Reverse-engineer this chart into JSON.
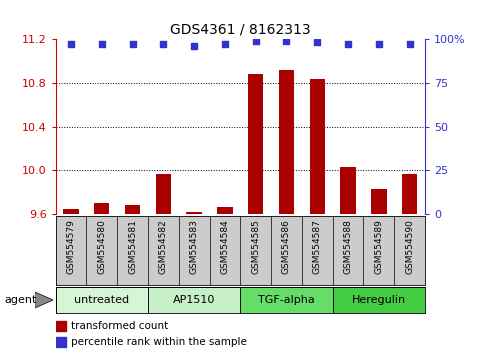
{
  "title": "GDS4361 / 8162313",
  "samples": [
    "GSM554579",
    "GSM554580",
    "GSM554581",
    "GSM554582",
    "GSM554583",
    "GSM554584",
    "GSM554585",
    "GSM554586",
    "GSM554587",
    "GSM554588",
    "GSM554589",
    "GSM554590"
  ],
  "bar_values": [
    9.65,
    9.7,
    9.68,
    9.97,
    9.62,
    9.67,
    10.88,
    10.92,
    10.83,
    10.03,
    9.83,
    9.97
  ],
  "percentile_values": [
    97,
    97,
    97,
    97,
    96,
    97,
    99,
    99,
    98,
    97,
    97,
    97
  ],
  "ymin": 9.6,
  "ymax": 11.2,
  "yticks": [
    9.6,
    10.0,
    10.4,
    10.8,
    11.2
  ],
  "right_yticks": [
    0,
    25,
    50,
    75,
    100
  ],
  "groups": [
    {
      "label": "untreated",
      "start": 0,
      "end": 3
    },
    {
      "label": "AP1510",
      "start": 3,
      "end": 6
    },
    {
      "label": "TGF-alpha",
      "start": 6,
      "end": 9
    },
    {
      "label": "Heregulin",
      "start": 9,
      "end": 12
    }
  ],
  "group_colors": [
    "#d6f5d6",
    "#c8f0c8",
    "#66dd66",
    "#44cc44"
  ],
  "bar_color": "#aa0000",
  "dot_color": "#3333cc",
  "sample_bg": "#cccccc",
  "left_axis_color": "#cc0000",
  "right_axis_color": "#3333cc",
  "grid_color": "#000000"
}
